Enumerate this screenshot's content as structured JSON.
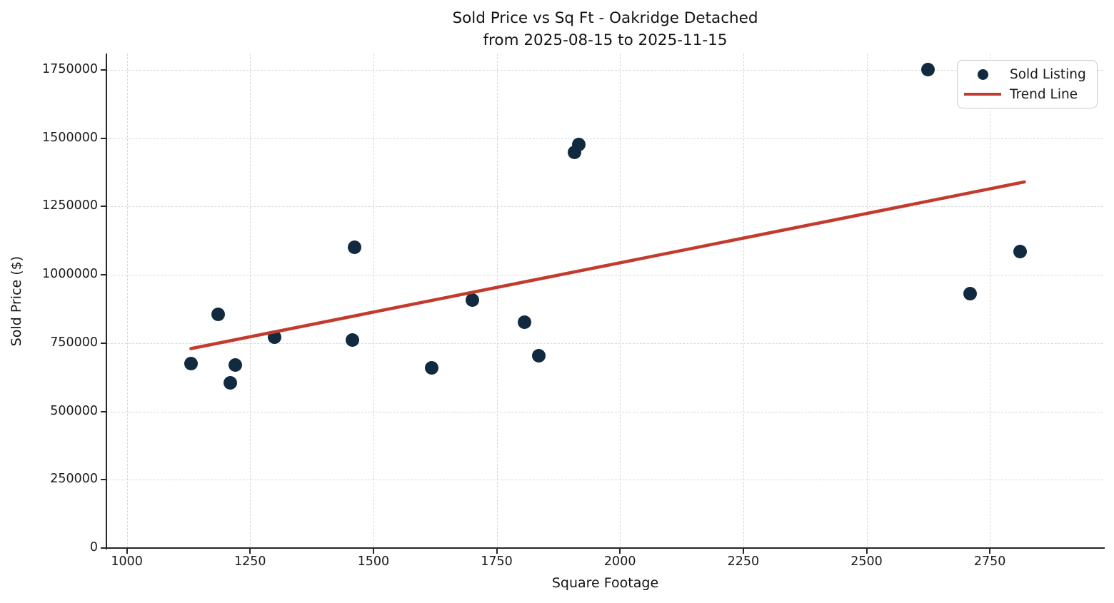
{
  "chart_data": {
    "type": "scatter",
    "title": "Sold Price vs Sq Ft - Oakridge Detached",
    "subtitle": "from 2025-08-15 to 2025-11-15",
    "xlabel": "Square Footage",
    "ylabel": "Sold Price ($)",
    "xlim": [
      960,
      2980
    ],
    "ylim": [
      0,
      1810000
    ],
    "x_ticks": [
      1000,
      1250,
      1500,
      1750,
      2000,
      2250,
      2500,
      2750
    ],
    "y_ticks": [
      0,
      250000,
      500000,
      750000,
      1000000,
      1250000,
      1500000,
      1750000
    ],
    "grid": true,
    "legend_position": "upper right",
    "series": [
      {
        "name": "Sold Listing",
        "type": "scatter",
        "color": "#112a40",
        "marker": "circle",
        "marker_size": 19,
        "points": [
          [
            1130,
            675000
          ],
          [
            1185,
            856000
          ],
          [
            1210,
            605000
          ],
          [
            1220,
            670000
          ],
          [
            1300,
            772000
          ],
          [
            1458,
            762000
          ],
          [
            1462,
            1100000
          ],
          [
            1618,
            660000
          ],
          [
            1700,
            908000
          ],
          [
            1806,
            826000
          ],
          [
            1835,
            703000
          ],
          [
            1908,
            1448000
          ],
          [
            1916,
            1477000
          ],
          [
            2625,
            1750000
          ],
          [
            2710,
            930000
          ],
          [
            2812,
            1085000
          ]
        ]
      },
      {
        "name": "Trend Line",
        "type": "line",
        "color": "#c23b2c",
        "line_width": 4.5,
        "points": [
          [
            1130,
            730000
          ],
          [
            2820,
            1340000
          ]
        ]
      }
    ]
  }
}
